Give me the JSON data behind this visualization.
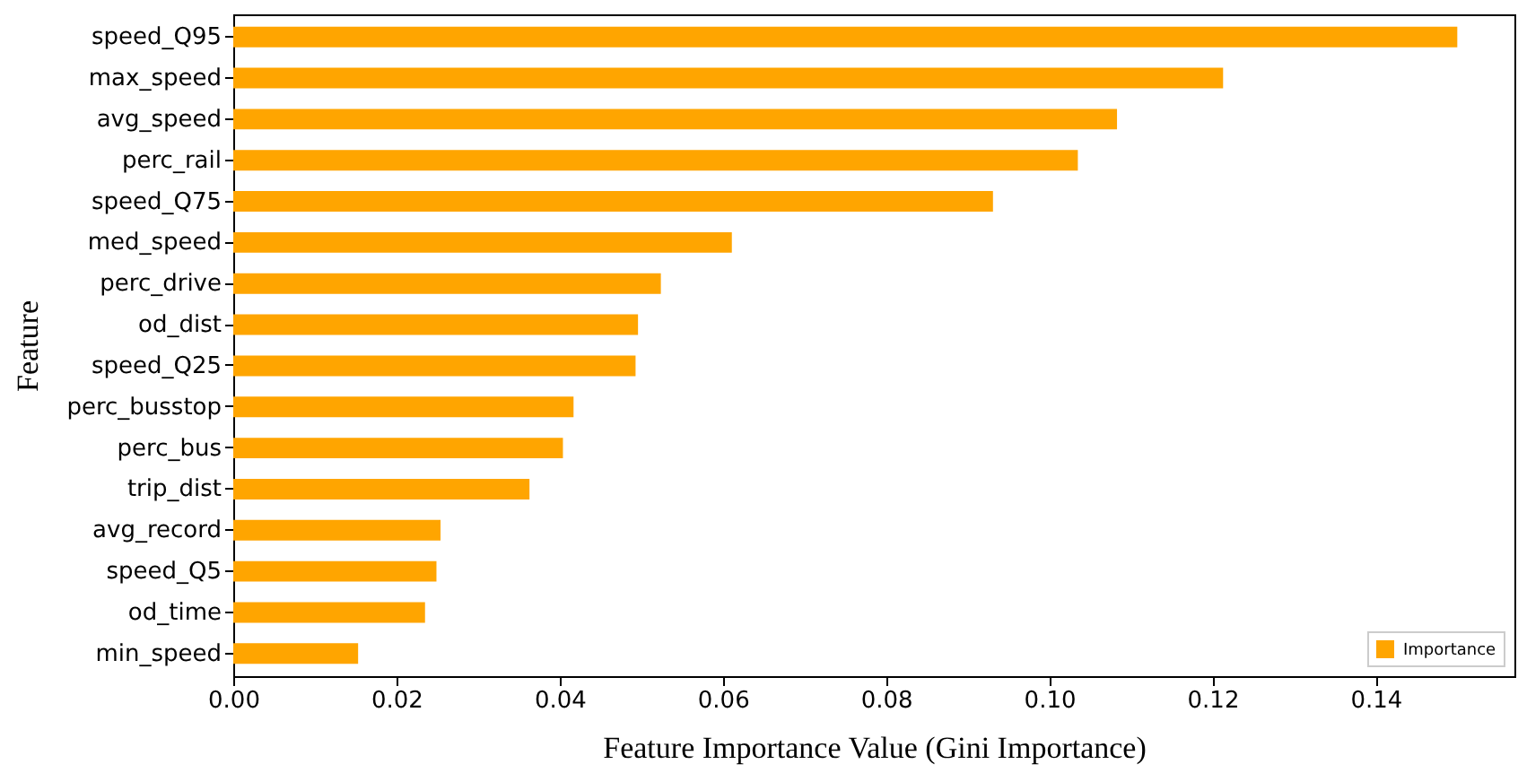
{
  "chart_data": {
    "type": "bar",
    "orientation": "horizontal",
    "xlabel": "Feature Importance Value (Gini Importance)",
    "ylabel": "Feature",
    "categories": [
      "speed_Q95",
      "max_speed",
      "avg_speed",
      "perc_rail",
      "speed_Q75",
      "med_speed",
      "perc_drive",
      "od_dist",
      "speed_Q25",
      "perc_busstop",
      "perc_bus",
      "trip_dist",
      "avg_record",
      "speed_Q5",
      "od_time",
      "min_speed"
    ],
    "series": [
      {
        "name": "Importance",
        "color": "#ffa500",
        "values": [
          0.15,
          0.1213,
          0.1083,
          0.1035,
          0.0931,
          0.0611,
          0.0524,
          0.0496,
          0.0493,
          0.0417,
          0.0404,
          0.0363,
          0.0254,
          0.0249,
          0.0235,
          0.0153
        ]
      }
    ],
    "xlim": [
      0,
      0.157
    ],
    "xticks": [
      {
        "value": 0,
        "label": "0.00"
      },
      {
        "value": 0.02,
        "label": "0.02"
      },
      {
        "value": 0.04,
        "label": "0.04"
      },
      {
        "value": 0.06,
        "label": "0.06"
      },
      {
        "value": 0.08,
        "label": "0.08"
      },
      {
        "value": 0.1,
        "label": "0.10"
      },
      {
        "value": 0.12,
        "label": "0.12"
      },
      {
        "value": 0.14,
        "label": "0.14"
      }
    ],
    "legend": "bottom right",
    "grid": false
  }
}
